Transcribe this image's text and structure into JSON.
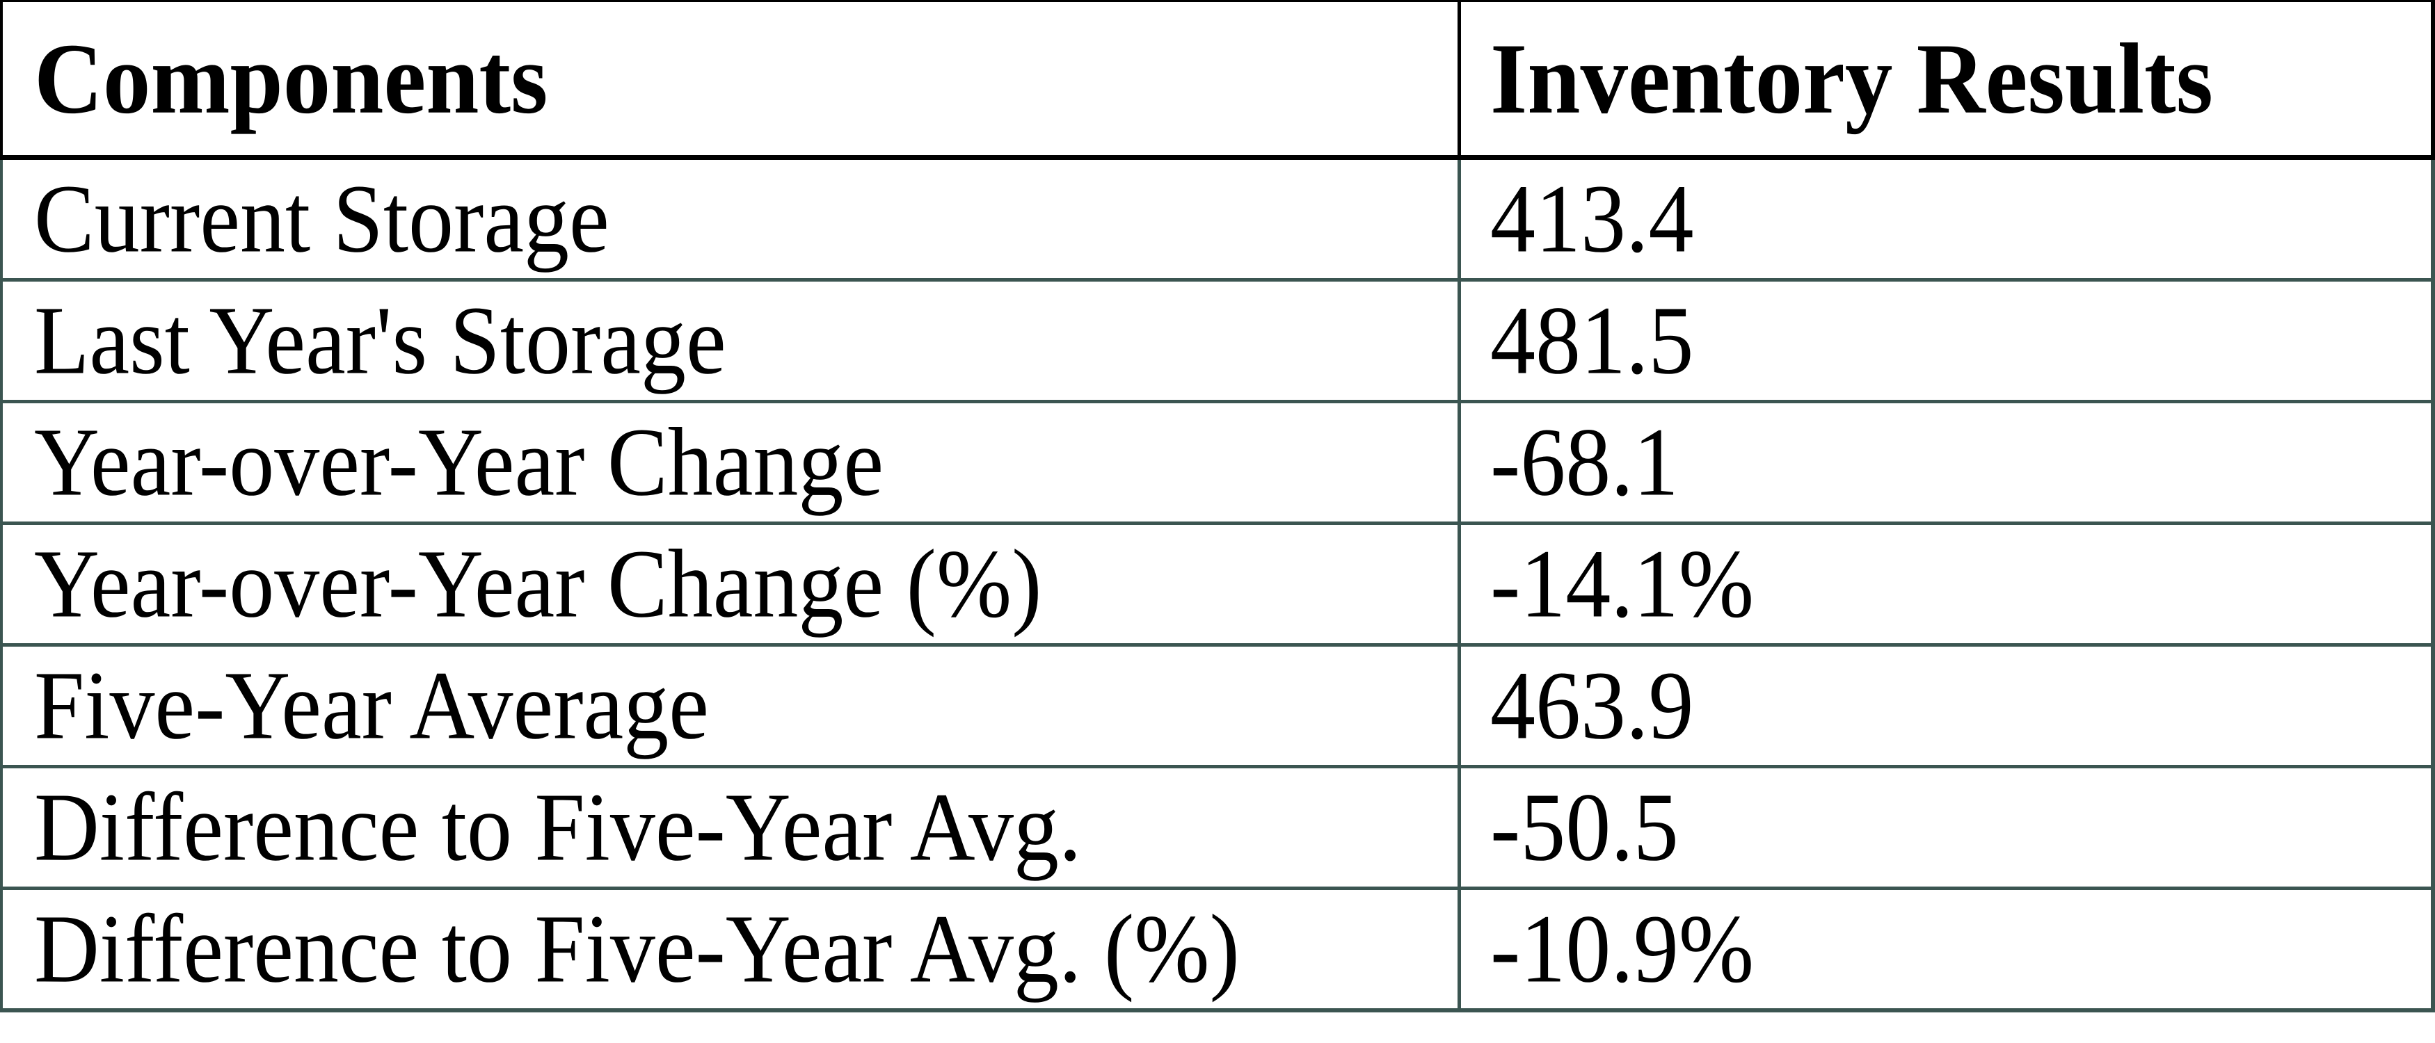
{
  "table": {
    "colors": {
      "header_border": "#000000",
      "body_border": "#3b5551",
      "text": "#000000",
      "background": "#ffffff"
    },
    "columns": [
      {
        "label": "Components"
      },
      {
        "label": "Inventory Results"
      }
    ],
    "rows": [
      {
        "label": "Current Storage",
        "value": "413.4"
      },
      {
        "label": "Last Year's Storage",
        "value": "481.5"
      },
      {
        "label": "Year-over-Year Change",
        "value": "-68.1"
      },
      {
        "label": "Year-over-Year Change (%)",
        "value": "-14.1%"
      },
      {
        "label": "Five-Year Average",
        "value": "463.9"
      },
      {
        "label": "Difference to Five-Year Avg.",
        "value": "-50.5"
      },
      {
        "label": "Difference to Five-Year Avg. (%)",
        "value": "-10.9%"
      }
    ]
  }
}
